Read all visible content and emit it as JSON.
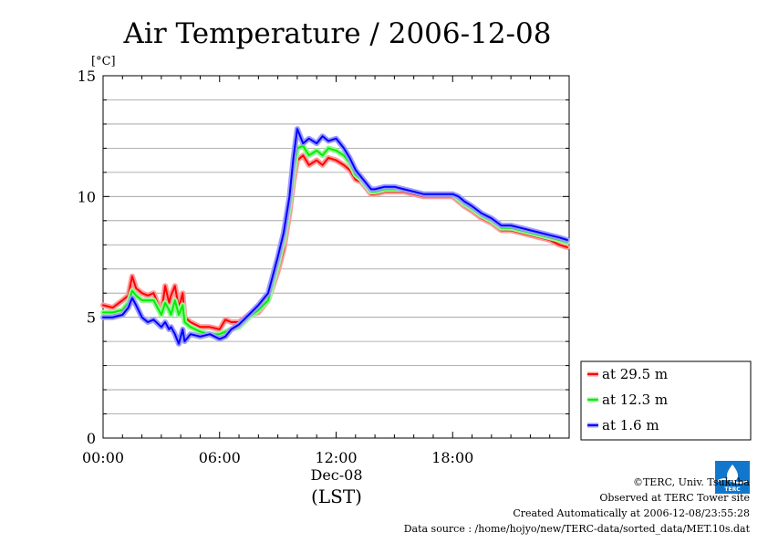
{
  "chart_data": {
    "type": "line",
    "title": "Air Temperature / 2006-12-08",
    "ylabel": "[°C]",
    "xlabel": "(LST)",
    "date_label": "Dec-08",
    "ylim": [
      0,
      15
    ],
    "y_ticks": [
      "0",
      "5",
      "10",
      "15"
    ],
    "x_ticks": [
      "00:00",
      "06:00",
      "12:00",
      "18:00"
    ],
    "x_unit": "hours (LST)",
    "xlim": [
      0,
      24
    ],
    "grid": "horizontal",
    "legend_placement": "right-bottom",
    "series": [
      {
        "name": "at 29.5 m",
        "color": "#ff0000",
        "x": [
          0,
          0.5,
          1,
          1.3,
          1.5,
          1.7,
          2,
          2.3,
          2.6,
          3,
          3.2,
          3.4,
          3.5,
          3.7,
          3.9,
          4.1,
          4.2,
          4.5,
          5,
          5.5,
          6,
          6.3,
          6.6,
          7,
          7.5,
          8,
          8.5,
          9,
          9.3,
          9.6,
          9.8,
          10,
          10.3,
          10.6,
          11,
          11.3,
          11.6,
          12,
          12.4,
          12.7,
          13,
          13.3,
          13.6,
          13.8,
          14,
          14.5,
          15,
          15.5,
          16,
          16.5,
          17,
          17.5,
          18,
          18.3,
          18.6,
          19,
          19.5,
          20,
          20.5,
          21,
          21.5,
          22,
          22.5,
          23,
          23.5,
          23.9
        ],
        "y": [
          5.5,
          5.4,
          5.7,
          5.9,
          6.7,
          6.2,
          6.0,
          5.9,
          6.0,
          5.2,
          6.3,
          5.6,
          5.9,
          6.3,
          5.4,
          6.0,
          5.0,
          4.8,
          4.6,
          4.6,
          4.5,
          4.9,
          4.8,
          4.8,
          5.1,
          5.2,
          5.7,
          6.9,
          7.8,
          9.3,
          10.6,
          11.5,
          11.7,
          11.3,
          11.5,
          11.3,
          11.6,
          11.5,
          11.3,
          11.1,
          10.7,
          10.6,
          10.3,
          10.1,
          10.1,
          10.2,
          10.2,
          10.2,
          10.1,
          10.0,
          10.0,
          10.0,
          10.0,
          9.8,
          9.6,
          9.4,
          9.1,
          8.9,
          8.6,
          8.6,
          8.5,
          8.4,
          8.3,
          8.2,
          8.0,
          7.9
        ]
      },
      {
        "name": "at 12.3 m",
        "color": "#00ee00",
        "x": [
          0,
          0.5,
          1,
          1.3,
          1.5,
          1.7,
          2,
          2.3,
          2.6,
          3,
          3.2,
          3.4,
          3.5,
          3.7,
          3.9,
          4.1,
          4.2,
          4.5,
          5,
          5.5,
          6,
          6.3,
          6.6,
          7,
          7.5,
          8,
          8.5,
          9,
          9.3,
          9.6,
          9.8,
          10,
          10.3,
          10.6,
          11,
          11.3,
          11.6,
          12,
          12.4,
          12.7,
          13,
          13.3,
          13.6,
          13.8,
          14,
          14.5,
          15,
          15.5,
          16,
          16.5,
          17,
          17.5,
          18,
          18.3,
          18.6,
          19,
          19.5,
          20,
          20.5,
          21,
          21.5,
          22,
          22.5,
          23,
          23.5,
          23.9
        ],
        "y": [
          5.2,
          5.2,
          5.3,
          5.6,
          6.1,
          5.9,
          5.7,
          5.7,
          5.7,
          5.1,
          5.6,
          5.3,
          5.1,
          5.7,
          5.1,
          5.5,
          4.8,
          4.6,
          4.4,
          4.3,
          4.3,
          4.4,
          4.5,
          4.6,
          5.0,
          5.3,
          5.7,
          7.2,
          8.2,
          9.7,
          11.0,
          12.0,
          12.1,
          11.7,
          11.9,
          11.7,
          12.0,
          11.9,
          11.7,
          11.4,
          10.9,
          10.7,
          10.4,
          10.2,
          10.2,
          10.3,
          10.3,
          10.3,
          10.2,
          10.1,
          10.1,
          10.1,
          10.1,
          9.9,
          9.7,
          9.5,
          9.2,
          9.0,
          8.7,
          8.7,
          8.6,
          8.5,
          8.4,
          8.3,
          8.2,
          8.1
        ]
      },
      {
        "name": "at 1.6 m",
        "color": "#0000ff",
        "x": [
          0,
          0.5,
          1,
          1.3,
          1.5,
          1.7,
          2,
          2.3,
          2.6,
          3,
          3.2,
          3.4,
          3.5,
          3.7,
          3.9,
          4.1,
          4.2,
          4.5,
          5,
          5.5,
          6,
          6.3,
          6.6,
          7,
          7.5,
          8,
          8.5,
          9,
          9.3,
          9.6,
          9.8,
          10,
          10.3,
          10.6,
          11,
          11.3,
          11.6,
          12,
          12.4,
          12.7,
          13,
          13.3,
          13.6,
          13.8,
          14,
          14.5,
          15,
          15.5,
          16,
          16.5,
          17,
          17.5,
          18,
          18.3,
          18.6,
          19,
          19.5,
          20,
          20.5,
          21,
          21.5,
          22,
          22.5,
          23,
          23.5,
          23.9
        ],
        "y": [
          5.0,
          5.0,
          5.1,
          5.4,
          5.8,
          5.5,
          5.0,
          4.8,
          4.9,
          4.6,
          4.8,
          4.5,
          4.6,
          4.3,
          3.9,
          4.5,
          4.0,
          4.3,
          4.2,
          4.3,
          4.1,
          4.2,
          4.5,
          4.7,
          5.1,
          5.5,
          6.0,
          7.5,
          8.5,
          10.0,
          11.6,
          12.8,
          12.2,
          12.4,
          12.2,
          12.5,
          12.3,
          12.4,
          12.0,
          11.6,
          11.1,
          10.8,
          10.5,
          10.3,
          10.3,
          10.4,
          10.4,
          10.3,
          10.2,
          10.1,
          10.1,
          10.1,
          10.1,
          10.0,
          9.8,
          9.6,
          9.3,
          9.1,
          8.8,
          8.8,
          8.7,
          8.6,
          8.5,
          8.4,
          8.3,
          8.2
        ]
      }
    ]
  },
  "footer": {
    "copyright": "©TERC, Univ. Tsukuba",
    "observed": "Observed at TERC Tower site",
    "created": "Created Automatically at 2006-12-08/23:55:28",
    "source": "Data source : /home/hojyo/new/TERC-data/sorted_data/MET.10s.dat"
  },
  "logo": {
    "text": "TERC"
  }
}
